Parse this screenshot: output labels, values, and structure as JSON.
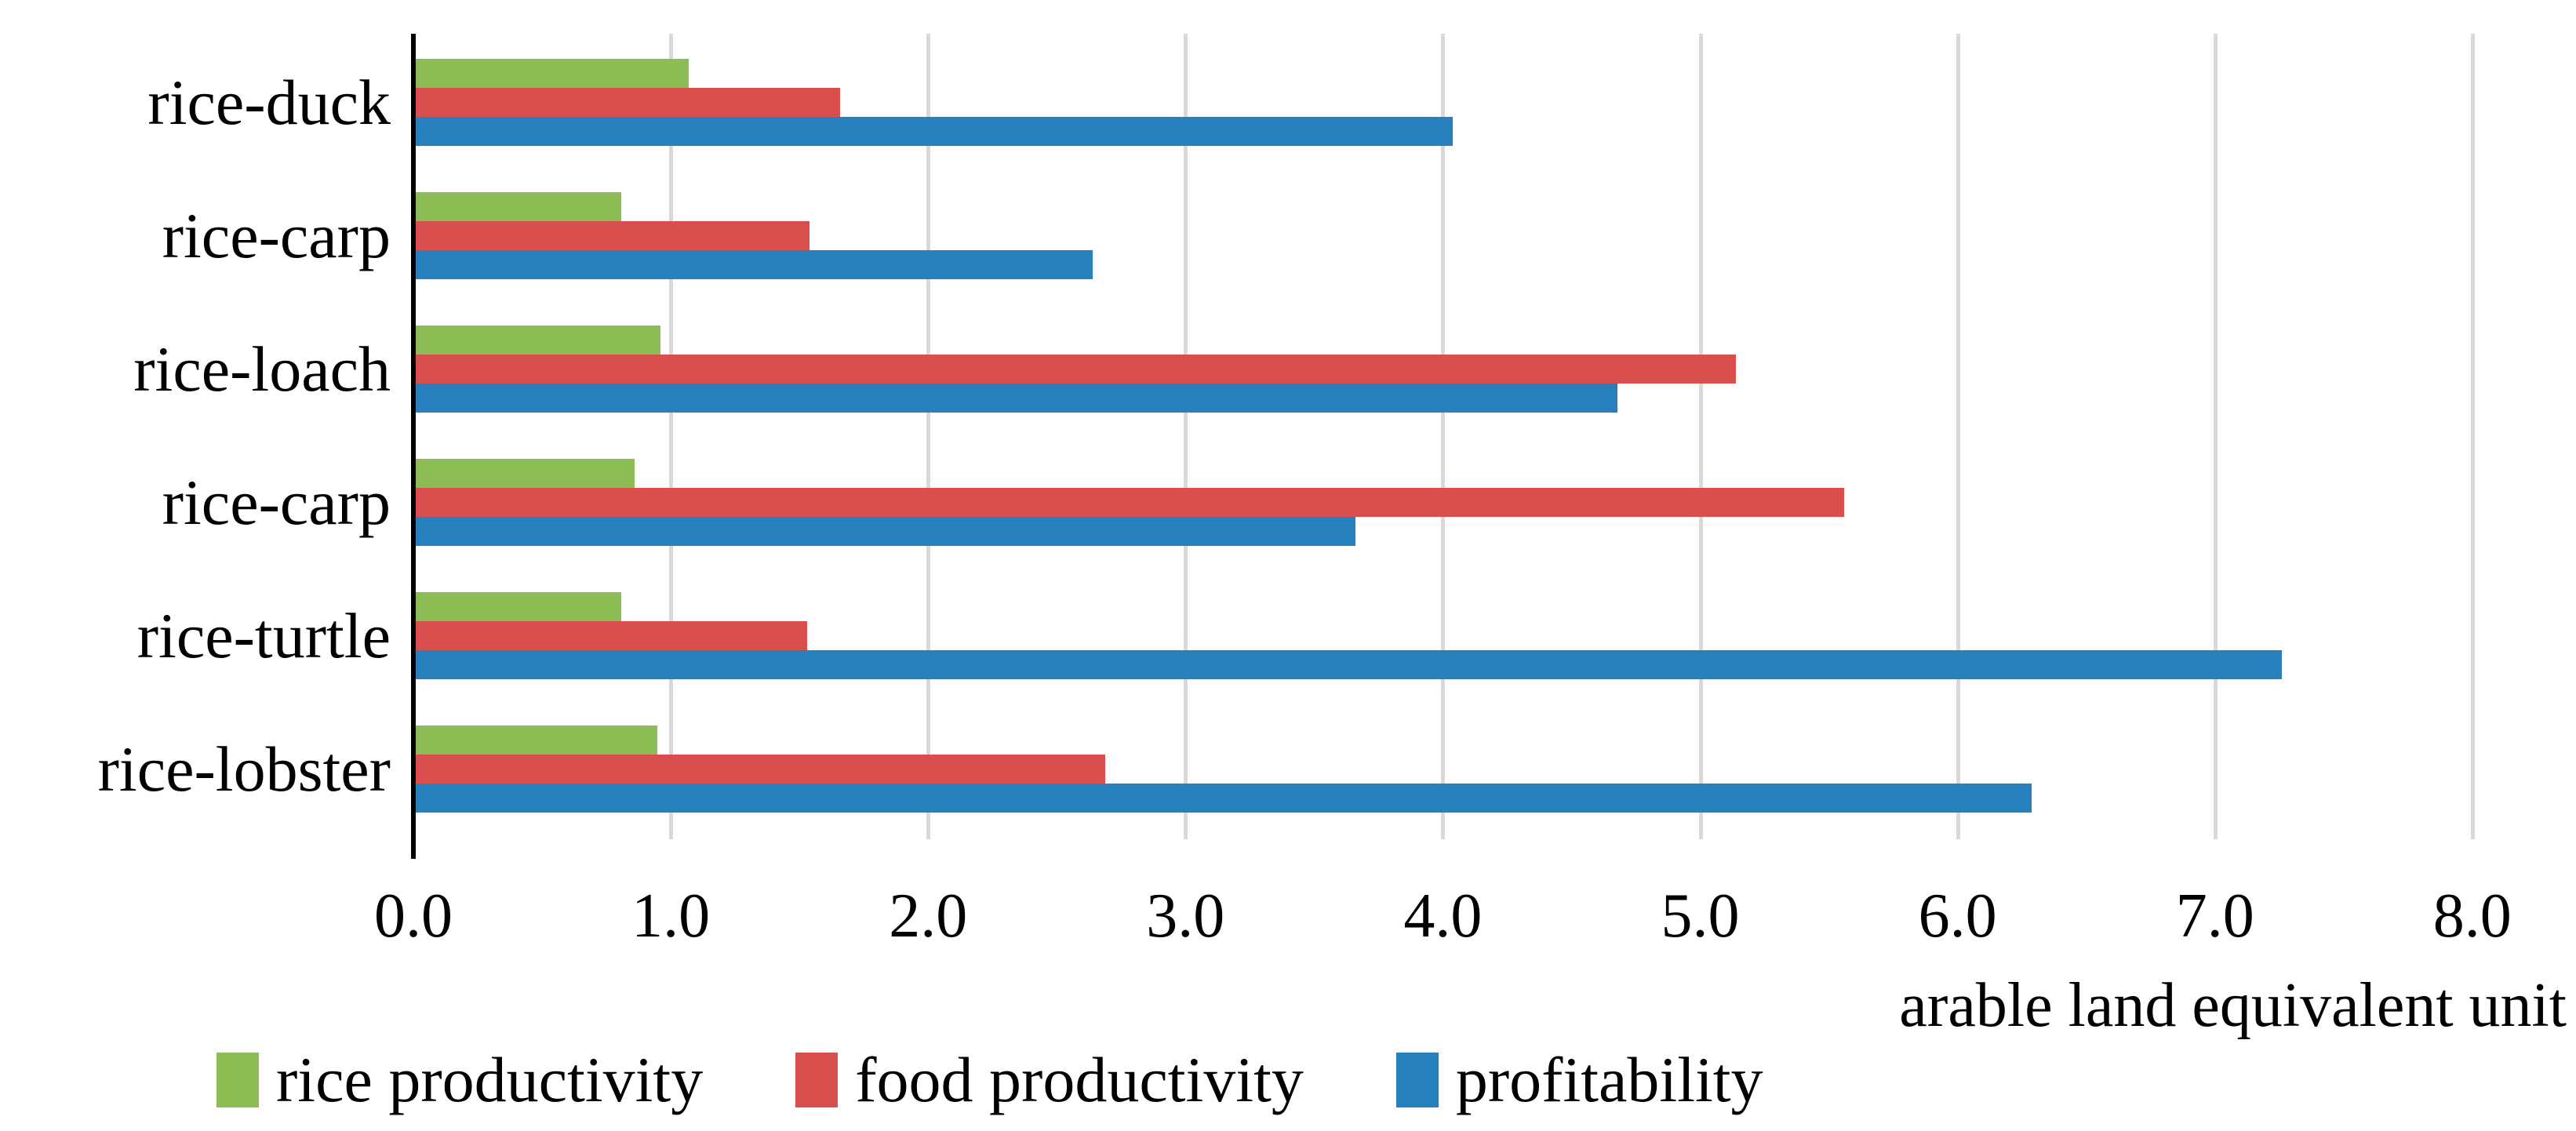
{
  "chart_data": {
    "type": "bar",
    "orientation": "horizontal",
    "title": "",
    "xlabel": "arable land equivalent unit",
    "ylabel": "",
    "categories": [
      "rice-duck",
      "rice-carp",
      "rice-loach",
      "rice-carp",
      "rice-turtle",
      "rice-lobster"
    ],
    "series": [
      {
        "name": "rice productivity",
        "color": "#8CBE55",
        "values": [
          1.06,
          0.8,
          0.95,
          0.85,
          0.8,
          0.94
        ]
      },
      {
        "name": "food productivity",
        "color": "#D94F4E",
        "values": [
          1.65,
          1.53,
          5.13,
          5.55,
          1.52,
          2.68
        ]
      },
      {
        "name": "profitability",
        "color": "#2780BE",
        "values": [
          4.03,
          2.63,
          4.67,
          3.65,
          7.25,
          6.28
        ]
      }
    ],
    "xlim": [
      0.0,
      8.0
    ],
    "x_tick_labels": [
      "0.0",
      "1.0",
      "2.0",
      "3.0",
      "4.0",
      "5.0",
      "6.0",
      "7.0",
      "8.0"
    ],
    "grid": true,
    "legend_position": "bottom-left",
    "colors": {
      "gridline": "#D9D9D9",
      "axis_line": "#000000",
      "text": "#000000",
      "background": "#FFFFFF"
    }
  }
}
